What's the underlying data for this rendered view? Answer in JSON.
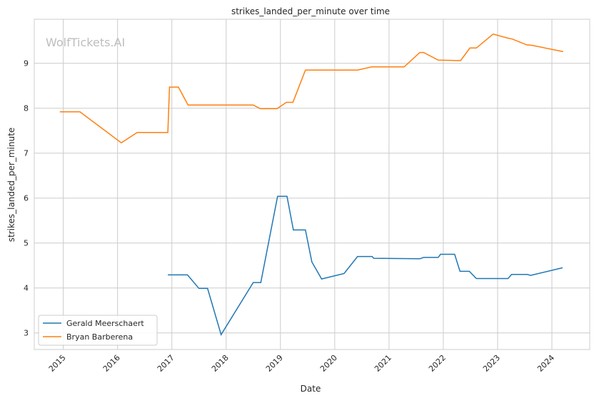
{
  "chart_data": {
    "type": "line",
    "title": "strikes_landed_per_minute over time",
    "xlabel": "Date",
    "ylabel": "strikes_landed_per_minute",
    "watermark": "WolfTickets.AI",
    "xlim": [
      "2014-06-20",
      "2024-09-12"
    ],
    "ylim": [
      2.63,
      9.98
    ],
    "x_ticks": [
      "2015",
      "2016",
      "2017",
      "2018",
      "2019",
      "2020",
      "2021",
      "2022",
      "2023",
      "2024"
    ],
    "y_ticks": [
      3,
      4,
      5,
      6,
      7,
      8,
      9
    ],
    "grid": true,
    "legend_position": "lower-left",
    "series": [
      {
        "name": "Gerald Meerschaert",
        "color": "#1f77b4",
        "points": [
          [
            "2016-12-05",
            4.29
          ],
          [
            "2017-04-16",
            4.29
          ],
          [
            "2017-07-02",
            3.99
          ],
          [
            "2017-08-29",
            3.99
          ],
          [
            "2017-11-28",
            2.96
          ],
          [
            "2018-07-02",
            4.12
          ],
          [
            "2018-08-22",
            4.12
          ],
          [
            "2018-12-13",
            6.04
          ],
          [
            "2019-02-14",
            6.04
          ],
          [
            "2019-03-29",
            5.29
          ],
          [
            "2019-06-18",
            5.29
          ],
          [
            "2019-07-31",
            4.58
          ],
          [
            "2019-10-05",
            4.2
          ],
          [
            "2020-03-04",
            4.32
          ],
          [
            "2020-06-03",
            4.7
          ],
          [
            "2020-09-09",
            4.7
          ],
          [
            "2020-09-20",
            4.66
          ],
          [
            "2021-07-27",
            4.65
          ],
          [
            "2021-08-22",
            4.68
          ],
          [
            "2021-11-28",
            4.68
          ],
          [
            "2021-12-13",
            4.75
          ],
          [
            "2022-03-18",
            4.75
          ],
          [
            "2022-04-23",
            4.37
          ],
          [
            "2022-06-25",
            4.37
          ],
          [
            "2022-08-11",
            4.21
          ],
          [
            "2023-03-12",
            4.21
          ],
          [
            "2023-04-05",
            4.3
          ],
          [
            "2023-07-20",
            4.3
          ],
          [
            "2023-08-11",
            4.28
          ],
          [
            "2024-03-13",
            4.45
          ]
        ]
      },
      {
        "name": "Bryan Barberena",
        "color": "#ff7f0e",
        "points": [
          [
            "2014-12-09",
            7.92
          ],
          [
            "2015-04-23",
            7.92
          ],
          [
            "2016-01-26",
            7.23
          ],
          [
            "2016-05-12",
            7.46
          ],
          [
            "2016-12-05",
            7.46
          ],
          [
            "2016-12-16",
            8.47
          ],
          [
            "2017-02-14",
            8.47
          ],
          [
            "2017-04-20",
            8.07
          ],
          [
            "2018-07-02",
            8.07
          ],
          [
            "2018-08-19",
            7.99
          ],
          [
            "2018-12-09",
            7.99
          ],
          [
            "2019-02-10",
            8.13
          ],
          [
            "2019-03-26",
            8.13
          ],
          [
            "2019-06-18",
            8.85
          ],
          [
            "2020-06-03",
            8.85
          ],
          [
            "2020-09-06",
            8.92
          ],
          [
            "2021-04-13",
            8.92
          ],
          [
            "2021-07-27",
            9.24
          ],
          [
            "2021-08-22",
            9.24
          ],
          [
            "2021-11-28",
            9.07
          ],
          [
            "2022-04-27",
            9.06
          ],
          [
            "2022-06-29",
            9.34
          ],
          [
            "2022-08-11",
            9.34
          ],
          [
            "2022-12-02",
            9.65
          ],
          [
            "2023-03-12",
            9.56
          ],
          [
            "2023-04-09",
            9.54
          ],
          [
            "2023-07-16",
            9.41
          ],
          [
            "2023-08-19",
            9.4
          ],
          [
            "2024-03-17",
            9.26
          ]
        ]
      }
    ]
  }
}
